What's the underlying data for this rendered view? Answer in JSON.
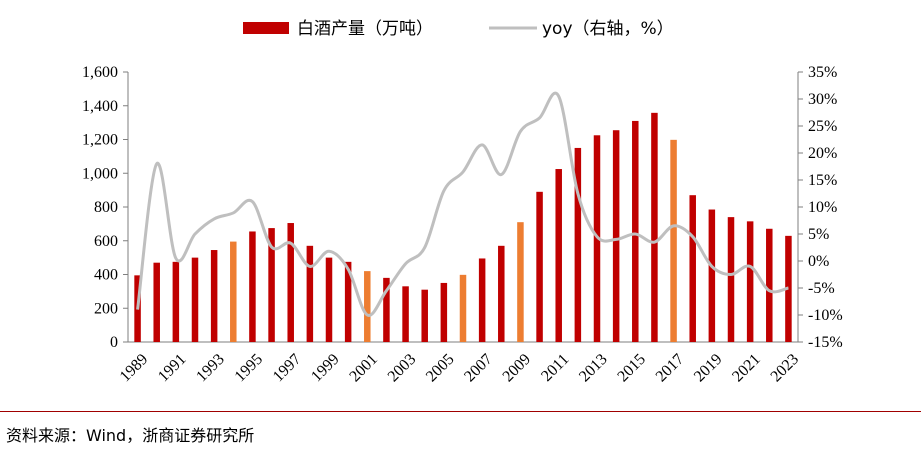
{
  "chart_data": {
    "type": "bar",
    "categories": [
      "1989",
      "1990",
      "1991",
      "1992",
      "1993",
      "1994",
      "1995",
      "1996",
      "1997",
      "1998",
      "1999",
      "2000",
      "2001",
      "2002",
      "2003",
      "2004",
      "2005",
      "2006",
      "2007",
      "2008",
      "2009",
      "2010",
      "2011",
      "2012",
      "2013",
      "2014",
      "2015",
      "2016",
      "2017",
      "2018",
      "2019",
      "2020",
      "2021",
      "2022",
      "2023"
    ],
    "x_tick_labels": [
      "1989",
      "1991",
      "1993",
      "1995",
      "1997",
      "1999",
      "2001",
      "2003",
      "2005",
      "2007",
      "2009",
      "2011",
      "2013",
      "2015",
      "2017",
      "2019",
      "2021",
      "2023"
    ],
    "series": [
      {
        "name": "白酒产量（万吨）",
        "axis": "left",
        "type": "bar",
        "color": "#c00000",
        "highlight_color": "#ed7d31",
        "highlight_years": [
          "1994",
          "2001",
          "2006",
          "2009",
          "2017"
        ],
        "values": [
          395,
          470,
          475,
          500,
          545,
          595,
          655,
          675,
          705,
          570,
          500,
          475,
          420,
          380,
          330,
          310,
          350,
          398,
          495,
          570,
          710,
          890,
          1025,
          1150,
          1225,
          1255,
          1310,
          1358,
          1198,
          870,
          785,
          740,
          715,
          671,
          629
        ]
      },
      {
        "name": "yoy（右轴，%）",
        "axis": "right",
        "type": "line",
        "color": "#bfbfbf",
        "values": [
          -9,
          18,
          0.5,
          5,
          7.8,
          8.9,
          11,
          2.6,
          3.3,
          -1,
          1.8,
          -1.5,
          -10,
          -5.5,
          -0.5,
          2.5,
          13,
          16.5,
          21.5,
          16,
          24,
          26.5,
          30.5,
          12.5,
          4.5,
          4,
          5,
          3.5,
          6.5,
          4.5,
          -1,
          -2.5,
          -1,
          -5.5,
          -5
        ]
      }
    ],
    "y_left": {
      "min": 0,
      "max": 1600,
      "ticks": [
        0,
        200,
        400,
        600,
        800,
        1000,
        1200,
        1400,
        1600
      ],
      "tick_labels": [
        "0",
        "200",
        "400",
        "600",
        "800",
        "1,000",
        "1,200",
        "1,400",
        "1,600"
      ]
    },
    "y_right": {
      "min": -15,
      "max": 35,
      "ticks": [
        -15,
        -10,
        -5,
        0,
        5,
        10,
        15,
        20,
        25,
        30,
        35
      ],
      "tick_labels": [
        "-15%",
        "-10%",
        "-5%",
        "0%",
        "5%",
        "10%",
        "15%",
        "20%",
        "25%",
        "30%",
        "35%"
      ]
    },
    "legend": {
      "placement": "top-center",
      "items": [
        "白酒产量（万吨）",
        "yoy（右轴，%）"
      ]
    },
    "grid": false
  },
  "source": "资料来源：Wind，浙商证券研究所"
}
